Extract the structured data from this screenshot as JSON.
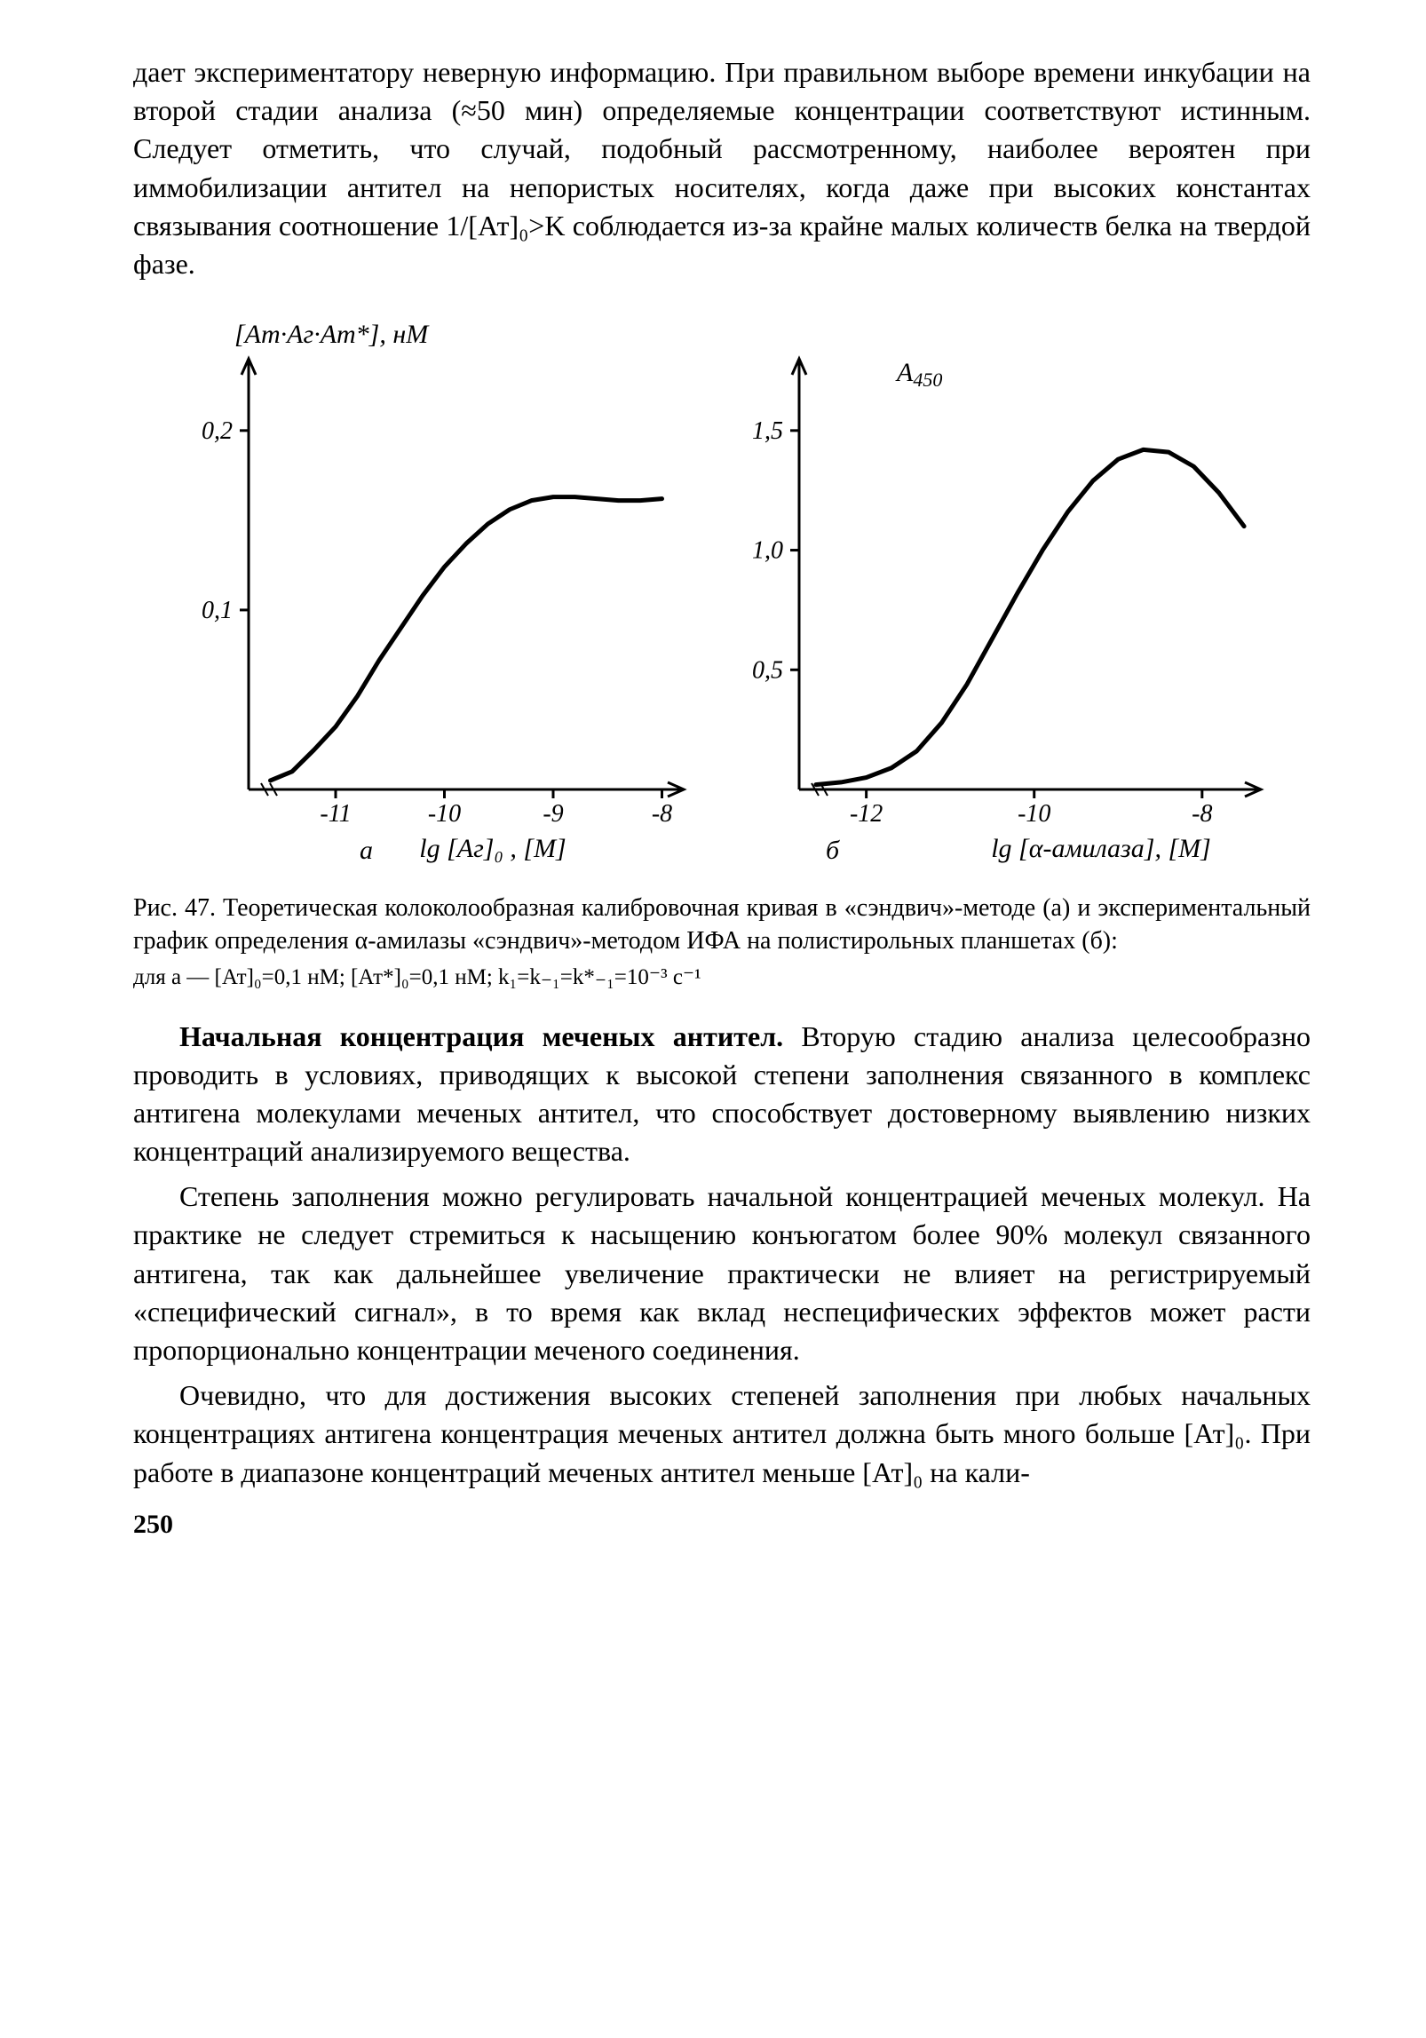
{
  "top_paragraph": "дает экспериментатору неверную информацию. При правильном выборе времени инкубации на второй стадии анализа (≈50 мин) определяемые концентрации соответствуют истинным. Следует отметить, что случай, подобный рассмотренному, наиболее вероятен при иммобилизации антител на непористых носителях, когда даже при высоких константах связывания соотношение 1/[Ат]₀>K соблюдается из-за крайне малых количеств белка на твердой фазе.",
  "figure": {
    "panel_a": {
      "y_axis_label": "[Ат·Аг·Ат*], нМ",
      "x_axis_label": "lg [Аг]₀ , [M]",
      "panel_label": "а",
      "x_ticks": [
        "-11",
        "-10",
        "-9",
        "-8"
      ],
      "y_ticks": [
        "0,1",
        "0,2"
      ],
      "curve_points": [
        [
          -11.6,
          0.005
        ],
        [
          -11.4,
          0.01
        ],
        [
          -11.2,
          0.022
        ],
        [
          -11.0,
          0.035
        ],
        [
          -10.8,
          0.052
        ],
        [
          -10.6,
          0.072
        ],
        [
          -10.4,
          0.09
        ],
        [
          -10.2,
          0.108
        ],
        [
          -10.0,
          0.124
        ],
        [
          -9.8,
          0.137
        ],
        [
          -9.6,
          0.148
        ],
        [
          -9.4,
          0.156
        ],
        [
          -9.2,
          0.161
        ],
        [
          -9.0,
          0.163
        ],
        [
          -8.8,
          0.163
        ],
        [
          -8.6,
          0.162
        ],
        [
          -8.4,
          0.161
        ],
        [
          -8.2,
          0.161
        ],
        [
          -8.0,
          0.162
        ]
      ],
      "xlim": [
        -11.8,
        -7.8
      ],
      "ylim": [
        0,
        0.24
      ]
    },
    "panel_b": {
      "y_axis_label": "A₄₅₀",
      "x_axis_label": "lg [α-амилаза], [M]",
      "panel_label": "б",
      "x_ticks": [
        "-12",
        "-10",
        "-8"
      ],
      "y_ticks": [
        "0,5",
        "1,0",
        "1,5"
      ],
      "curve_points": [
        [
          -12.6,
          0.02
        ],
        [
          -12.3,
          0.03
        ],
        [
          -12.0,
          0.05
        ],
        [
          -11.7,
          0.09
        ],
        [
          -11.4,
          0.16
        ],
        [
          -11.1,
          0.28
        ],
        [
          -10.8,
          0.44
        ],
        [
          -10.5,
          0.63
        ],
        [
          -10.2,
          0.82
        ],
        [
          -9.9,
          1.0
        ],
        [
          -9.6,
          1.16
        ],
        [
          -9.3,
          1.29
        ],
        [
          -9.0,
          1.38
        ],
        [
          -8.7,
          1.42
        ],
        [
          -8.4,
          1.41
        ],
        [
          -8.1,
          1.35
        ],
        [
          -7.8,
          1.24
        ],
        [
          -7.5,
          1.1
        ]
      ],
      "xlim": [
        -12.8,
        -7.3
      ],
      "ylim": [
        0,
        1.8
      ]
    },
    "stroke_width": 5,
    "line_color": "#000000",
    "axis_width": 3,
    "background_color": "#ffffff",
    "label_fontsize_y": 30,
    "label_fontsize_x": 30,
    "tick_fontsize": 28
  },
  "caption_main": "Рис. 47. Теоретическая колоколообразная калибровочная кривая в «сэндвич»-методе (а) и экспериментальный график определения α-амилазы «сэндвич»-методом ИФА на полистирольных планшетах (б):",
  "caption_sub": "для а — [Ат]₀=0,1 нМ; [Ат*]₀=0,1 нМ; k₁=k₋₁=k*₋₁=10⁻³ с⁻¹",
  "section_heading": "Начальная концентрация меченых антител.",
  "para2_rest": " Вторую стадию анализа целесообразно проводить в условиях, приводящих к высокой степени заполнения связанного в комплекс антигена молекулами меченых антител, что способствует достоверному выявлению низких концентраций анализируемого вещества.",
  "para3": "Степень заполнения можно регулировать начальной концентрацией меченых молекул. На практике не следует стремиться к насыщению конъюгатом более 90% молекул связанного антигена, так как дальнейшее увеличение практически не влияет на регистрируемый «специфический сигнал», в то время как вклад неспецифических эффектов может расти пропорционально концентрации меченого соединения.",
  "para4": "Очевидно, что для достижения высоких степеней заполнения при любых начальных концентрациях антигена концентрация меченых антител должна быть много больше [Ат]₀. При работе в диапазоне концентраций меченых антител меньше [Ат]₀ на кали-",
  "page_number": "250"
}
